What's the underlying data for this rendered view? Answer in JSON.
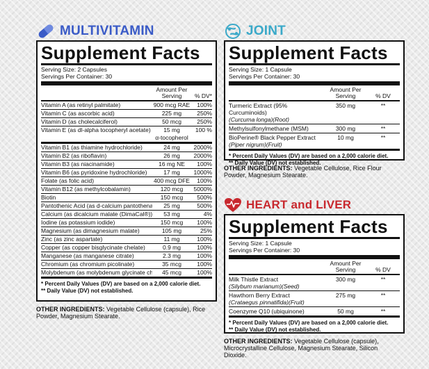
{
  "colors": {
    "accent_blue": "#3a5bc7",
    "joint_teal": "#3aa9c9",
    "heart_red": "#c8282e"
  },
  "multivitamin": {
    "heading": "MULTIVITAMIN",
    "icon": "capsule-icon",
    "title": "Supplement Facts",
    "serving_size": "Serving Size: 2 Capsules",
    "servings": "Servings Per Container: 30",
    "col_amount": "Amount Per Serving",
    "col_dv": "% DV*",
    "rows": [
      {
        "name": "Vitamin A (as retinyl palmitate)",
        "amount": "900 mcg RAE",
        "dv": "100%"
      },
      {
        "name": "Vitamin C (as ascorbic acid)",
        "amount": "225 mg",
        "dv": "250%"
      },
      {
        "name": "Vitamin D (as cholecalciferol)",
        "amount": "50 mcg",
        "dv": "250%"
      },
      {
        "name": "Vitamin E (as dl-alpha tocopheryl acetate)",
        "amount": "15 mg",
        "dv": "100 %"
      },
      {
        "name": "Vitamin B1 (as thiamine hydrochloride)",
        "amount": "24 mg",
        "dv": "2000%"
      },
      {
        "name": "Vitamin B2 (as riboflavin)",
        "amount": "26 mg",
        "dv": "2000%"
      },
      {
        "name": "Vitamin B3 (as niacinamide)",
        "amount": "16 mg NE",
        "dv": "100%"
      },
      {
        "name": "Vitamin B6 (as pyridoxine hydrochloride)",
        "amount": "17 mg",
        "dv": "1000%"
      },
      {
        "name": "Folate (as folic acid)",
        "amount": "400 mcg DFE",
        "dv": "100%"
      },
      {
        "name": "Vitamin B12 (as methylcobalamin)",
        "amount": "120 mcg",
        "dv": "5000%"
      },
      {
        "name": "Biotin",
        "amount": "150 mcg",
        "dv": "500%"
      },
      {
        "name": "Pantothenic Acid (as d-calcium pantothenate)",
        "amount": "25 mg",
        "dv": "500%"
      },
      {
        "name": "Calcium (as dicalcium malate (DimaCal®))",
        "amount": "53 mg",
        "dv": "4%"
      },
      {
        "name": "Iodine (as potassium iodide)",
        "amount": "150 mcg",
        "dv": "100%"
      },
      {
        "name": "Magnesium (as dimagnesium malate)",
        "amount": "105 mg",
        "dv": "25%"
      },
      {
        "name": "Zinc (as zinc aspartate)",
        "amount": "11 mg",
        "dv": "100%"
      },
      {
        "name": "Copper (as copper bisglycinate chelate)",
        "amount": "0.9 mg",
        "dv": "100%"
      },
      {
        "name": "Manganese (as manganese citrate)",
        "amount": "2.3 mg",
        "dv": "100%"
      },
      {
        "name": "Chromium (as chromium picolinate)",
        "amount": "35 mcg",
        "dv": "100%"
      },
      {
        "name": "Molybdenum (as molybdenum glycinate chelate)",
        "amount": "45 mcg",
        "dv": "100%"
      }
    ],
    "vitamin_e_note": "α-tocopherol",
    "footnote1": "* Percent Daily Values (DV) are based on a 2,000 calorie diet.",
    "footnote2": "** Daily Value (DV) not established.",
    "other_label": "OTHER INGREDIENTS:",
    "other_text": "Vegetable Cellulose (capsule), Rice Powder, Magnesium Stearate."
  },
  "joint": {
    "heading": "JOINT",
    "icon": "joint-icon",
    "title": "Supplement Facts",
    "serving_size": "Serving Size: 1 Capsule",
    "servings": "Servings Per Container: 30",
    "col_amount": "Amount Per Serving",
    "col_dv": "% DV",
    "rows": [
      {
        "name": "Turmeric Extract (95% Curcuminoids)",
        "sub": "(Curcuma longa)(Root)",
        "amount": "350 mg",
        "dv": "**"
      },
      {
        "name": "Methylsulfonylmethane (MSM)",
        "sub": "",
        "amount": "300 mg",
        "dv": "**"
      },
      {
        "name": "BioPerine® Black Pepper Extract",
        "sub": "(Piper nigrum)(Fruit)",
        "amount": "10 mg",
        "dv": "**"
      }
    ],
    "footnote1": "* Percent Daily Values (DV) are based on a 2,000 calorie diet.",
    "footnote2": "** Daily Value (DV) not established.",
    "other_label": "OTHER INGREDIENTS:",
    "other_text": "Vegetable Cellulose, Rice Flour Powder, Magnesium Stearate."
  },
  "heart": {
    "heading": "HEART and LIVER",
    "icon": "heart-pulse-icon",
    "title": "Supplement Facts",
    "serving_size": "Serving Size: 1 Capsule",
    "servings": "Servings Per Container: 30",
    "col_amount": "Amount Per Serving",
    "col_dv": "% DV",
    "rows": [
      {
        "name": "Milk Thistle Extract",
        "sub": "(Silybum marianum)(Seed)",
        "amount": "300 mg",
        "dv": "**"
      },
      {
        "name": "Hawthorn Berry Extract",
        "sub": "(Crataegus pinnatifida)(Fruit)",
        "amount": "275 mg",
        "dv": "**"
      },
      {
        "name": "Coenzyme Q10 (ubiquinone)",
        "sub": "",
        "amount": "50 mg",
        "dv": "**"
      }
    ],
    "footnote1": "* Percent Daily Values (DV) are based on a 2,000 calorie diet.",
    "footnote2": "** Daily Value (DV) not established.",
    "other_label": "OTHER INGREDIENTS:",
    "other_text": "Vegetable Cellulose (capsule), Microcrystalline Cellulose, Magnesium Stearate, Silicon Dioxide."
  }
}
